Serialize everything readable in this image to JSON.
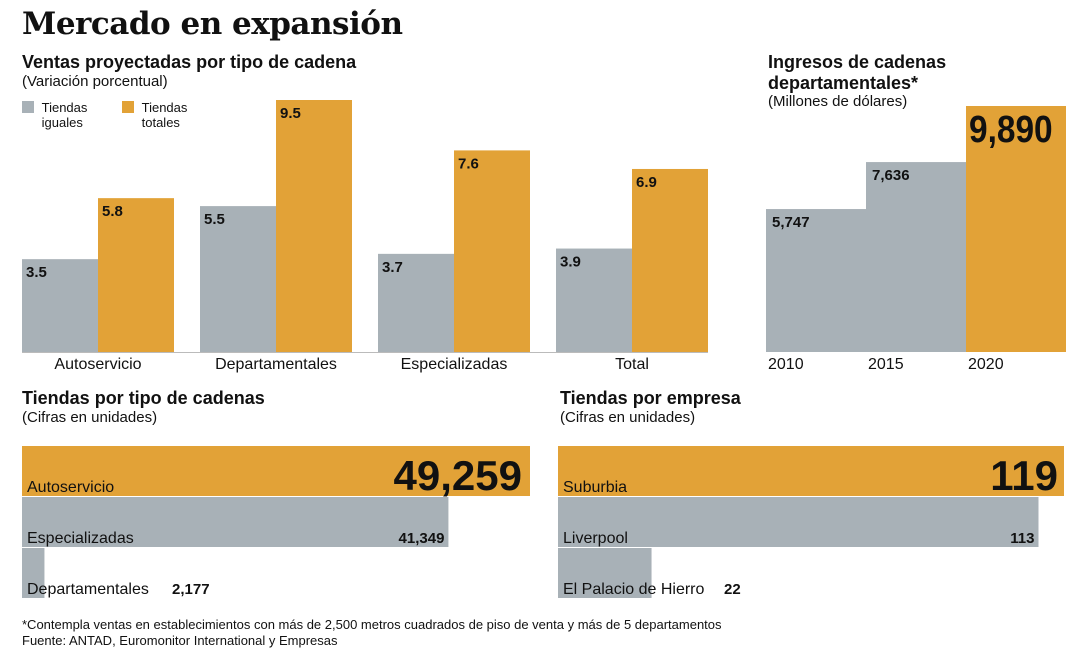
{
  "title": "Mercado en expansión",
  "colors": {
    "gray": "#a8b1b7",
    "orange": "#e2a237",
    "text": "#111111"
  },
  "legend": {
    "same": "Tiendas iguales",
    "same_l1": "Tiendas",
    "same_l2": "iguales",
    "total": "Tiendas totales",
    "total_l1": "Tiendas",
    "total_l2": "totales"
  },
  "chart_data": [
    {
      "type": "bar",
      "title": "Ventas proyectadas por tipo de cadena",
      "subtitle": "(Variación porcentual)",
      "categories": [
        "Autoservicio",
        "Departamentales",
        "Especializadas",
        "Total"
      ],
      "series": [
        {
          "name": "Tiendas iguales",
          "values": [
            3.5,
            5.5,
            3.7,
            3.9
          ]
        },
        {
          "name": "Tiendas totales",
          "values": [
            5.8,
            9.5,
            7.6,
            6.9
          ]
        }
      ],
      "labels": [
        [
          "3.5",
          "5.8"
        ],
        [
          "5.5",
          "9.5"
        ],
        [
          "3.7",
          "7.6"
        ],
        [
          "3.9",
          "6.9"
        ]
      ],
      "ylim": [
        0,
        9.5
      ]
    },
    {
      "type": "bar",
      "title": "Ingresos de cadenas departamentales*",
      "title_l1": "Ingresos de cadenas",
      "title_l2": "departamentales*",
      "subtitle": "(Millones de dólares)",
      "categories": [
        "2010",
        "2015",
        "2020"
      ],
      "values": [
        5747,
        7636,
        9890
      ],
      "labels": [
        "5,747",
        "7,636",
        "9,890"
      ],
      "ylim": [
        0,
        9890
      ]
    },
    {
      "type": "bar",
      "orientation": "horizontal",
      "title": "Tiendas por tipo de cadenas",
      "subtitle": "(Cifras en unidades)",
      "categories": [
        "Autoservicio",
        "Especializadas",
        "Departamentales"
      ],
      "values": [
        49259,
        41349,
        2177
      ],
      "labels": [
        "49,259",
        "41,349",
        "2,177"
      ],
      "xlim": [
        0,
        49259
      ]
    },
    {
      "type": "bar",
      "orientation": "horizontal",
      "title": "Tiendas por empresa",
      "subtitle": "(Cifras en unidades)",
      "categories": [
        "Suburbia",
        "Liverpool",
        "El Palacio de Hierro"
      ],
      "values": [
        119,
        113,
        22
      ],
      "labels": [
        "119",
        "113",
        "22"
      ],
      "xlim": [
        0,
        119
      ]
    }
  ],
  "footnote": "*Contempla ventas en establecimientos con más de 2,500 metros cuadrados de piso de venta y más de 5 departamentos",
  "source": "Fuente: ANTAD, Euromonitor International y Empresas"
}
